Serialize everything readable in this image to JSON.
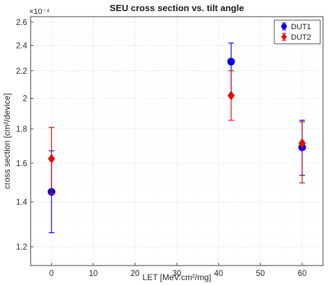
{
  "chart_data": {
    "type": "scatter",
    "title": "SEU cross section vs. tilt angle",
    "xlabel": "LET [MeV.cm²/mg]",
    "ylabel": "cross section [cm²/device]",
    "xlim": [
      -5,
      65
    ],
    "ylim": [
      1.125,
      2.65
    ],
    "y_scale": "log",
    "y_multiplier": "×10⁻⁴",
    "x_ticks": [
      0,
      10,
      20,
      30,
      40,
      50,
      60
    ],
    "x_tick_labels": [
      "0",
      "10",
      "20",
      "30",
      "40",
      "50",
      "60"
    ],
    "y_ticks": [
      1.2,
      1.4,
      1.6,
      1.8,
      2.0,
      2.2,
      2.4,
      2.6
    ],
    "y_tick_labels": [
      "1.2",
      "1.4",
      "1.6",
      "1.8",
      "2",
      "2.2",
      "2.4",
      "2.6"
    ],
    "grid": true,
    "legend_position": "top-right",
    "series": [
      {
        "name": "DUT1",
        "color": "#0000ee",
        "marker": "circle",
        "points": [
          {
            "x": 0,
            "y": 1.45,
            "err_low": 1.26,
            "err_high": 1.67
          },
          {
            "x": 43,
            "y": 2.27,
            "err_low": 2.02,
            "err_high": 2.42
          },
          {
            "x": 60,
            "y": 1.69,
            "err_low": 1.535,
            "err_high": 1.855
          }
        ]
      },
      {
        "name": "DUT2",
        "color": "#ee0000",
        "marker": "diamond",
        "points": [
          {
            "x": 0,
            "y": 1.625,
            "err_low": 1.44,
            "err_high": 1.81
          },
          {
            "x": 43,
            "y": 2.02,
            "err_low": 1.855,
            "err_high": 2.2
          },
          {
            "x": 60,
            "y": 1.715,
            "err_low": 1.495,
            "err_high": 1.845
          }
        ]
      }
    ]
  }
}
